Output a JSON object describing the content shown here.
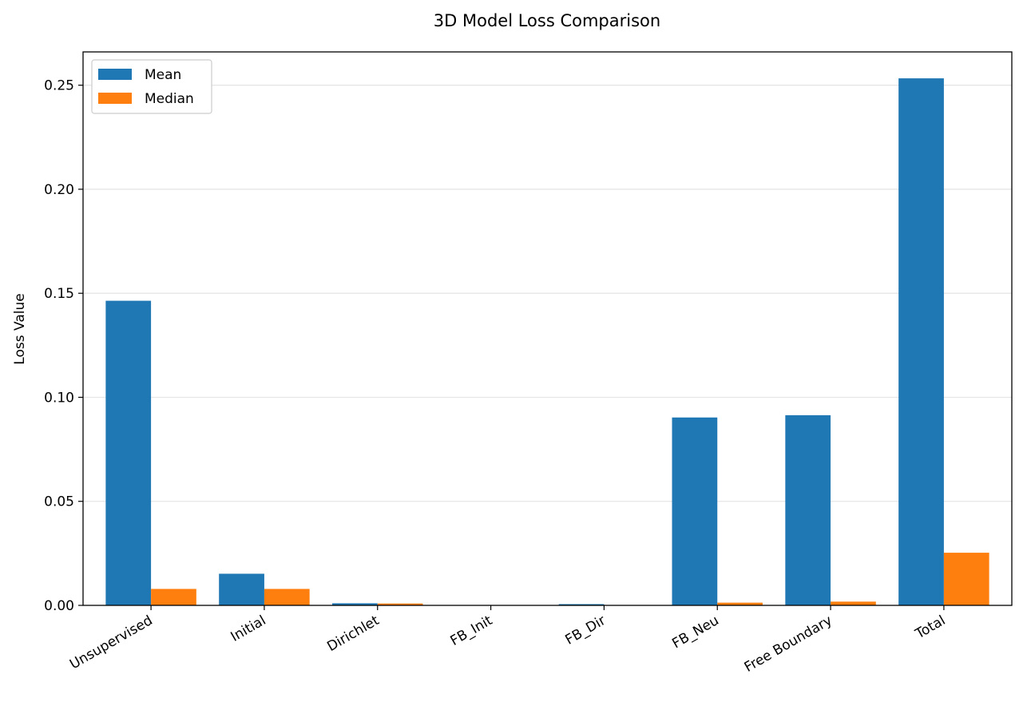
{
  "chart_data": {
    "type": "bar",
    "title": "3D Model Loss Comparison",
    "xlabel": "",
    "ylabel": "Loss Value",
    "categories": [
      "Unsupervised",
      "Initial",
      "Dirichlet",
      "FB_Init",
      "FB_Dir",
      "FB_Neu",
      "Free Boundary",
      "Total"
    ],
    "series": [
      {
        "name": "Mean",
        "color": "#1f77b4",
        "values": [
          0.1464,
          0.0152,
          0.001,
          0.0001,
          0.0006,
          0.0903,
          0.0914,
          0.2533
        ]
      },
      {
        "name": "Median",
        "color": "#ff7f0e",
        "values": [
          0.0079,
          0.0079,
          0.0009,
          0.0,
          0.0002,
          0.0013,
          0.0018,
          0.0253
        ]
      }
    ],
    "ylim": [
      0,
      0.266
    ],
    "yticks": [
      "0.00",
      "0.05",
      "0.10",
      "0.15",
      "0.20",
      "0.25"
    ],
    "ytick_values": [
      0,
      0.05,
      0.1,
      0.15,
      0.2,
      0.25
    ],
    "grid": "y",
    "legend_position": "top-left"
  }
}
